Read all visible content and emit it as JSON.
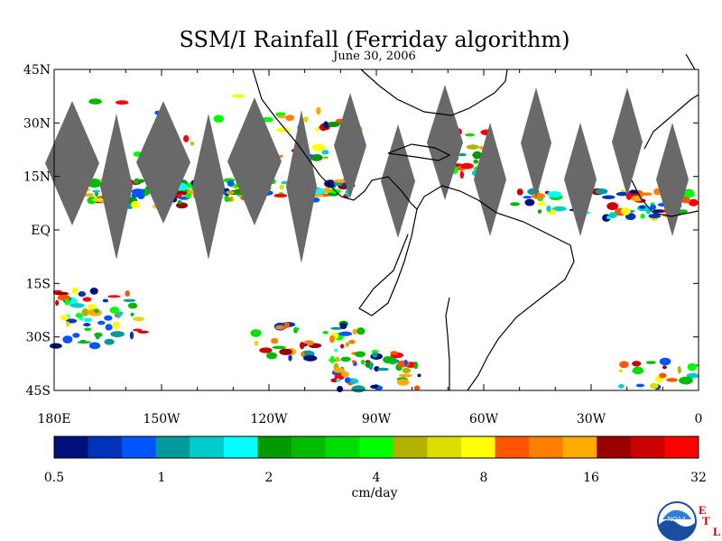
{
  "title": "SSM/I Rainfall (Ferriday algorithm)",
  "date": "June 30, 2006",
  "map": {
    "lat_labels": [
      "45N",
      "30N",
      "15N",
      "EQ",
      "15S",
      "30S",
      "45S"
    ],
    "lon_labels": [
      "180E",
      "150W",
      "120W",
      "90W",
      "60W",
      "30W",
      "0"
    ],
    "lat_range": [
      -45,
      45
    ],
    "lon_range": [
      -180,
      0
    ],
    "missing_swath_color": "#696969",
    "coastline_color": "#000000"
  },
  "colorbar": {
    "units": "cm/day",
    "tick_labels": [
      "0.5",
      "1",
      "2",
      "4",
      "8",
      "16",
      "32"
    ],
    "colors": [
      "#00107a",
      "#0033bb",
      "#0055ff",
      "#009a9a",
      "#00cccc",
      "#00ffff",
      "#009900",
      "#00bb00",
      "#00dd00",
      "#00ff00",
      "#b2b200",
      "#dddd00",
      "#ffff00",
      "#ff5500",
      "#ff8000",
      "#ffaa00",
      "#990000",
      "#cc0000",
      "#ff0000"
    ]
  },
  "logo": {
    "text": "NOAA",
    "letters": [
      "E",
      "T",
      "L"
    ]
  }
}
